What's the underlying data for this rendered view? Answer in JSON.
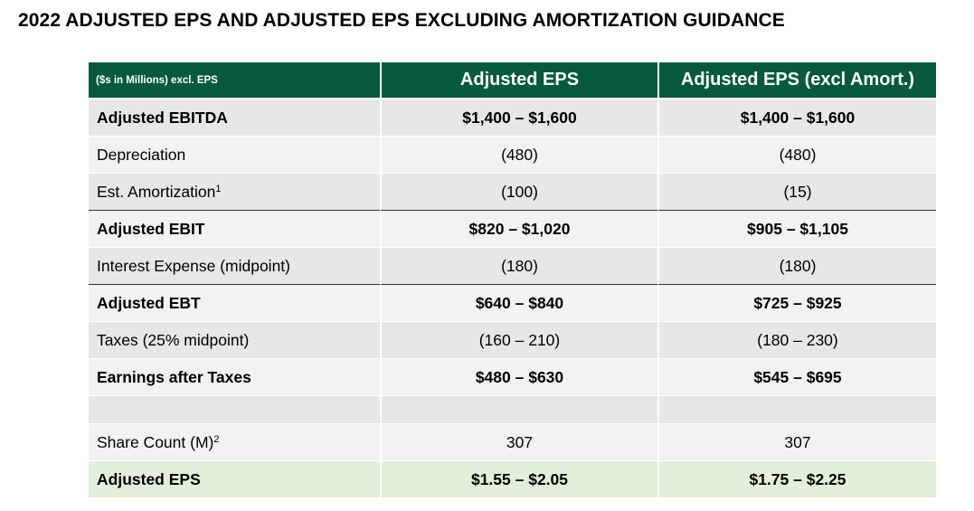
{
  "title": "2022 ADJUSTED EPS AND ADJUSTED EPS EXCLUDING AMORTIZATION GUIDANCE",
  "table": {
    "header": {
      "units": "($s in Millions) excl. EPS",
      "col1": "Adjusted EPS",
      "col2": "Adjusted EPS (excl Amort.)"
    },
    "rows": [
      {
        "label": "Adjusted EBITDA",
        "footnote": "",
        "v1": "$1,400 – $1,600",
        "v2": "$1,400 – $1,600"
      },
      {
        "label": "Depreciation",
        "footnote": "",
        "v1": "(480)",
        "v2": "(480)"
      },
      {
        "label": "Est. Amortization",
        "footnote": "1",
        "v1": "(100)",
        "v2": "(15)"
      },
      {
        "label": "Adjusted EBIT",
        "footnote": "",
        "v1": "$820 – $1,020",
        "v2": "$905 – $1,105"
      },
      {
        "label": "Interest Expense (midpoint)",
        "footnote": "",
        "v1": "(180)",
        "v2": "(180)"
      },
      {
        "label": "Adjusted EBT",
        "footnote": "",
        "v1": "$640 – $840",
        "v2": "$725 – $925"
      },
      {
        "label": "Taxes (25% midpoint)",
        "footnote": "",
        "v1": "(160 – 210)",
        "v2": "(180 – 230)"
      },
      {
        "label": "Earnings after Taxes",
        "footnote": "",
        "v1": "$480 – $630",
        "v2": "$545 – $695"
      },
      {
        "label": "",
        "footnote": "",
        "v1": "",
        "v2": ""
      },
      {
        "label": "Share Count (M)",
        "footnote": "2",
        "v1": "307",
        "v2": "307"
      },
      {
        "label": "Adjusted EPS",
        "footnote": "",
        "v1": "$1.55 – $2.05",
        "v2": "$1.75 – $2.25"
      }
    ]
  },
  "colors": {
    "header_bg": "#055a3e",
    "row_dark": "#e7e7e7",
    "row_light": "#f2f2f2",
    "final_row_bg": "#e2efd9"
  }
}
